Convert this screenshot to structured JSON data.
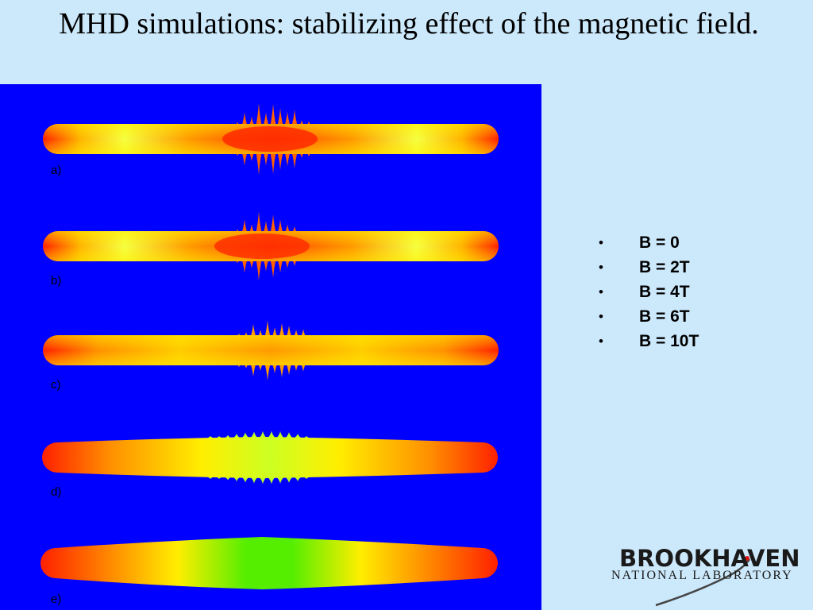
{
  "title": "MHD simulations: stabilizing effect of the magnetic field.",
  "panels": [
    {
      "label": "a)"
    },
    {
      "label": "b)"
    },
    {
      "label": "c)"
    },
    {
      "label": "d)"
    },
    {
      "label": "e)"
    }
  ],
  "bullets": [
    "B = 0",
    "B = 2T",
    "B = 4T",
    "B = 6T",
    "B = 10T"
  ],
  "logo": {
    "main": "BROOKHAVEN",
    "sub": "NATIONAL LABORATORY"
  },
  "colors": {
    "background": "#cce8fb",
    "panel": "#0000ff",
    "hot": "#ff2000",
    "mid": "#ffaa00",
    "cool": "#33ee00"
  }
}
